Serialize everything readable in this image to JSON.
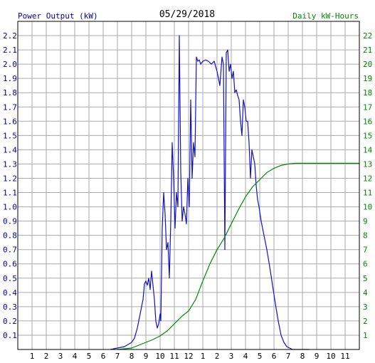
{
  "header": {
    "left_title": "Power Output (kW)",
    "date": "05/29/2018",
    "right_title": "Daily kW-Hours"
  },
  "colors": {
    "power": "#1010cc",
    "energy": "#008800",
    "left_axis_text": "#0000aa",
    "right_axis_text": "#008800",
    "grid": "#aaaaaa",
    "frame": "#000000"
  },
  "chart_data": {
    "type": "line",
    "grid": true,
    "x_tick_labels": [
      "1",
      "2",
      "3",
      "4",
      "5",
      "6",
      "7",
      "8",
      "9",
      "10",
      "11",
      "12",
      "1",
      "2",
      "3",
      "4",
      "5",
      "6",
      "7",
      "8",
      "9",
      "10",
      "11"
    ],
    "x_range_hours": [
      0,
      24
    ],
    "y_left": {
      "label": "Power Output (kW)",
      "range": [
        0,
        2.3
      ],
      "ticks": [
        0.1,
        0.2,
        0.3,
        0.4,
        0.5,
        0.6,
        0.7,
        0.8,
        0.9,
        1.0,
        1.1,
        1.2,
        1.3,
        1.4,
        1.5,
        1.6,
        1.7,
        1.8,
        1.9,
        2.0,
        2.1,
        2.2
      ],
      "tick_labels": [
        "0.1",
        "0.2",
        "0.3",
        "0.4",
        "0.5",
        "0.6",
        "0.7",
        "0.8",
        "0.9",
        "1.0",
        "1.1",
        "1.2",
        "1.3",
        "1.4",
        "1.5",
        "1.6",
        "1.7",
        "1.8",
        "1.9",
        "2.0",
        "2.1",
        "2.2"
      ]
    },
    "y_right": {
      "label": "Daily kW-Hours",
      "range": [
        0,
        23
      ],
      "ticks": [
        1,
        2,
        3,
        4,
        5,
        6,
        7,
        8,
        9,
        10,
        11,
        12,
        13,
        14,
        15,
        16,
        17,
        18,
        19,
        20,
        21,
        22
      ],
      "tick_labels": [
        "1",
        "2",
        "3",
        "4",
        "5",
        "6",
        "7",
        "8",
        "9",
        "10",
        "11",
        "12",
        "13",
        "14",
        "15",
        "16",
        "17",
        "18",
        "19",
        "20",
        "21",
        "22"
      ]
    },
    "series": [
      {
        "axis": "left",
        "x": [
          6.5,
          7.0,
          7.5,
          8.0,
          8.2,
          8.4,
          8.6,
          8.8,
          8.9,
          9.0,
          9.1,
          9.2,
          9.3,
          9.4,
          9.5,
          9.6,
          9.7,
          9.8,
          9.9,
          10.0,
          10.05,
          10.15,
          10.25,
          10.35,
          10.45,
          10.55,
          10.65,
          10.75,
          10.85,
          10.95,
          11.05,
          11.15,
          11.25,
          11.35,
          11.45,
          11.55,
          11.65,
          11.75,
          11.85,
          11.95,
          12.05,
          12.15,
          12.25,
          12.35,
          12.45,
          12.55,
          12.65,
          12.75,
          12.85,
          13.0,
          13.2,
          13.4,
          13.6,
          13.8,
          14.0,
          14.2,
          14.35,
          14.45,
          14.55,
          14.65,
          14.75,
          14.85,
          14.95,
          15.05,
          15.15,
          15.25,
          15.35,
          15.45,
          15.55,
          15.65,
          15.75,
          15.85,
          15.95,
          16.05,
          16.15,
          16.25,
          16.35,
          16.45,
          16.55,
          16.65,
          16.75,
          16.85,
          16.95,
          17.1,
          17.3,
          17.5,
          17.7,
          17.9,
          18.1,
          18.3,
          18.5,
          18.7,
          18.9,
          19.1,
          19.3,
          19.5,
          19.7,
          19.9,
          20.1,
          20.3,
          20.5
        ],
        "y": [
          0.0,
          0.01,
          0.02,
          0.05,
          0.08,
          0.15,
          0.25,
          0.35,
          0.46,
          0.48,
          0.45,
          0.5,
          0.42,
          0.55,
          0.45,
          0.35,
          0.2,
          0.15,
          0.18,
          0.25,
          0.2,
          0.85,
          1.1,
          0.95,
          0.7,
          0.75,
          0.5,
          0.9,
          1.45,
          1.2,
          0.85,
          1.1,
          1.0,
          2.2,
          1.25,
          0.9,
          1.0,
          0.95,
          0.88,
          1.2,
          1.0,
          1.75,
          1.2,
          1.45,
          1.35,
          2.05,
          2.02,
          2.03,
          2.0,
          2.02,
          2.03,
          2.02,
          2.0,
          2.02,
          1.95,
          1.85,
          2.05,
          2.0,
          0.7,
          2.08,
          2.1,
          1.95,
          2.0,
          1.9,
          1.95,
          1.8,
          1.82,
          1.78,
          1.75,
          1.6,
          1.5,
          1.75,
          1.7,
          1.6,
          1.6,
          1.45,
          1.2,
          1.4,
          1.35,
          1.3,
          1.15,
          1.05,
          1.0,
          0.9,
          0.8,
          0.7,
          0.58,
          0.45,
          0.32,
          0.2,
          0.1,
          0.05,
          0.02,
          0.01,
          0.0,
          0.0,
          0.0,
          0.0,
          0.0,
          0.0,
          0.0
        ]
      },
      {
        "axis": "right",
        "x": [
          7.0,
          8.0,
          8.5,
          9.0,
          9.5,
          10.0,
          10.5,
          11.0,
          11.5,
          12.0,
          12.5,
          13.0,
          13.5,
          14.0,
          14.5,
          15.0,
          15.5,
          16.0,
          16.5,
          17.0,
          17.5,
          18.0,
          18.5,
          19.0,
          19.5,
          20.0,
          21.0,
          22.0,
          23.0,
          24.0
        ],
        "y": [
          0.0,
          0.1,
          0.3,
          0.5,
          0.7,
          0.95,
          1.3,
          1.8,
          2.3,
          2.7,
          3.5,
          4.8,
          6.0,
          7.0,
          7.8,
          8.8,
          9.8,
          10.7,
          11.4,
          11.9,
          12.4,
          12.7,
          12.9,
          13.0,
          13.05,
          13.05,
          13.05,
          13.05,
          13.05,
          13.05
        ]
      }
    ]
  }
}
